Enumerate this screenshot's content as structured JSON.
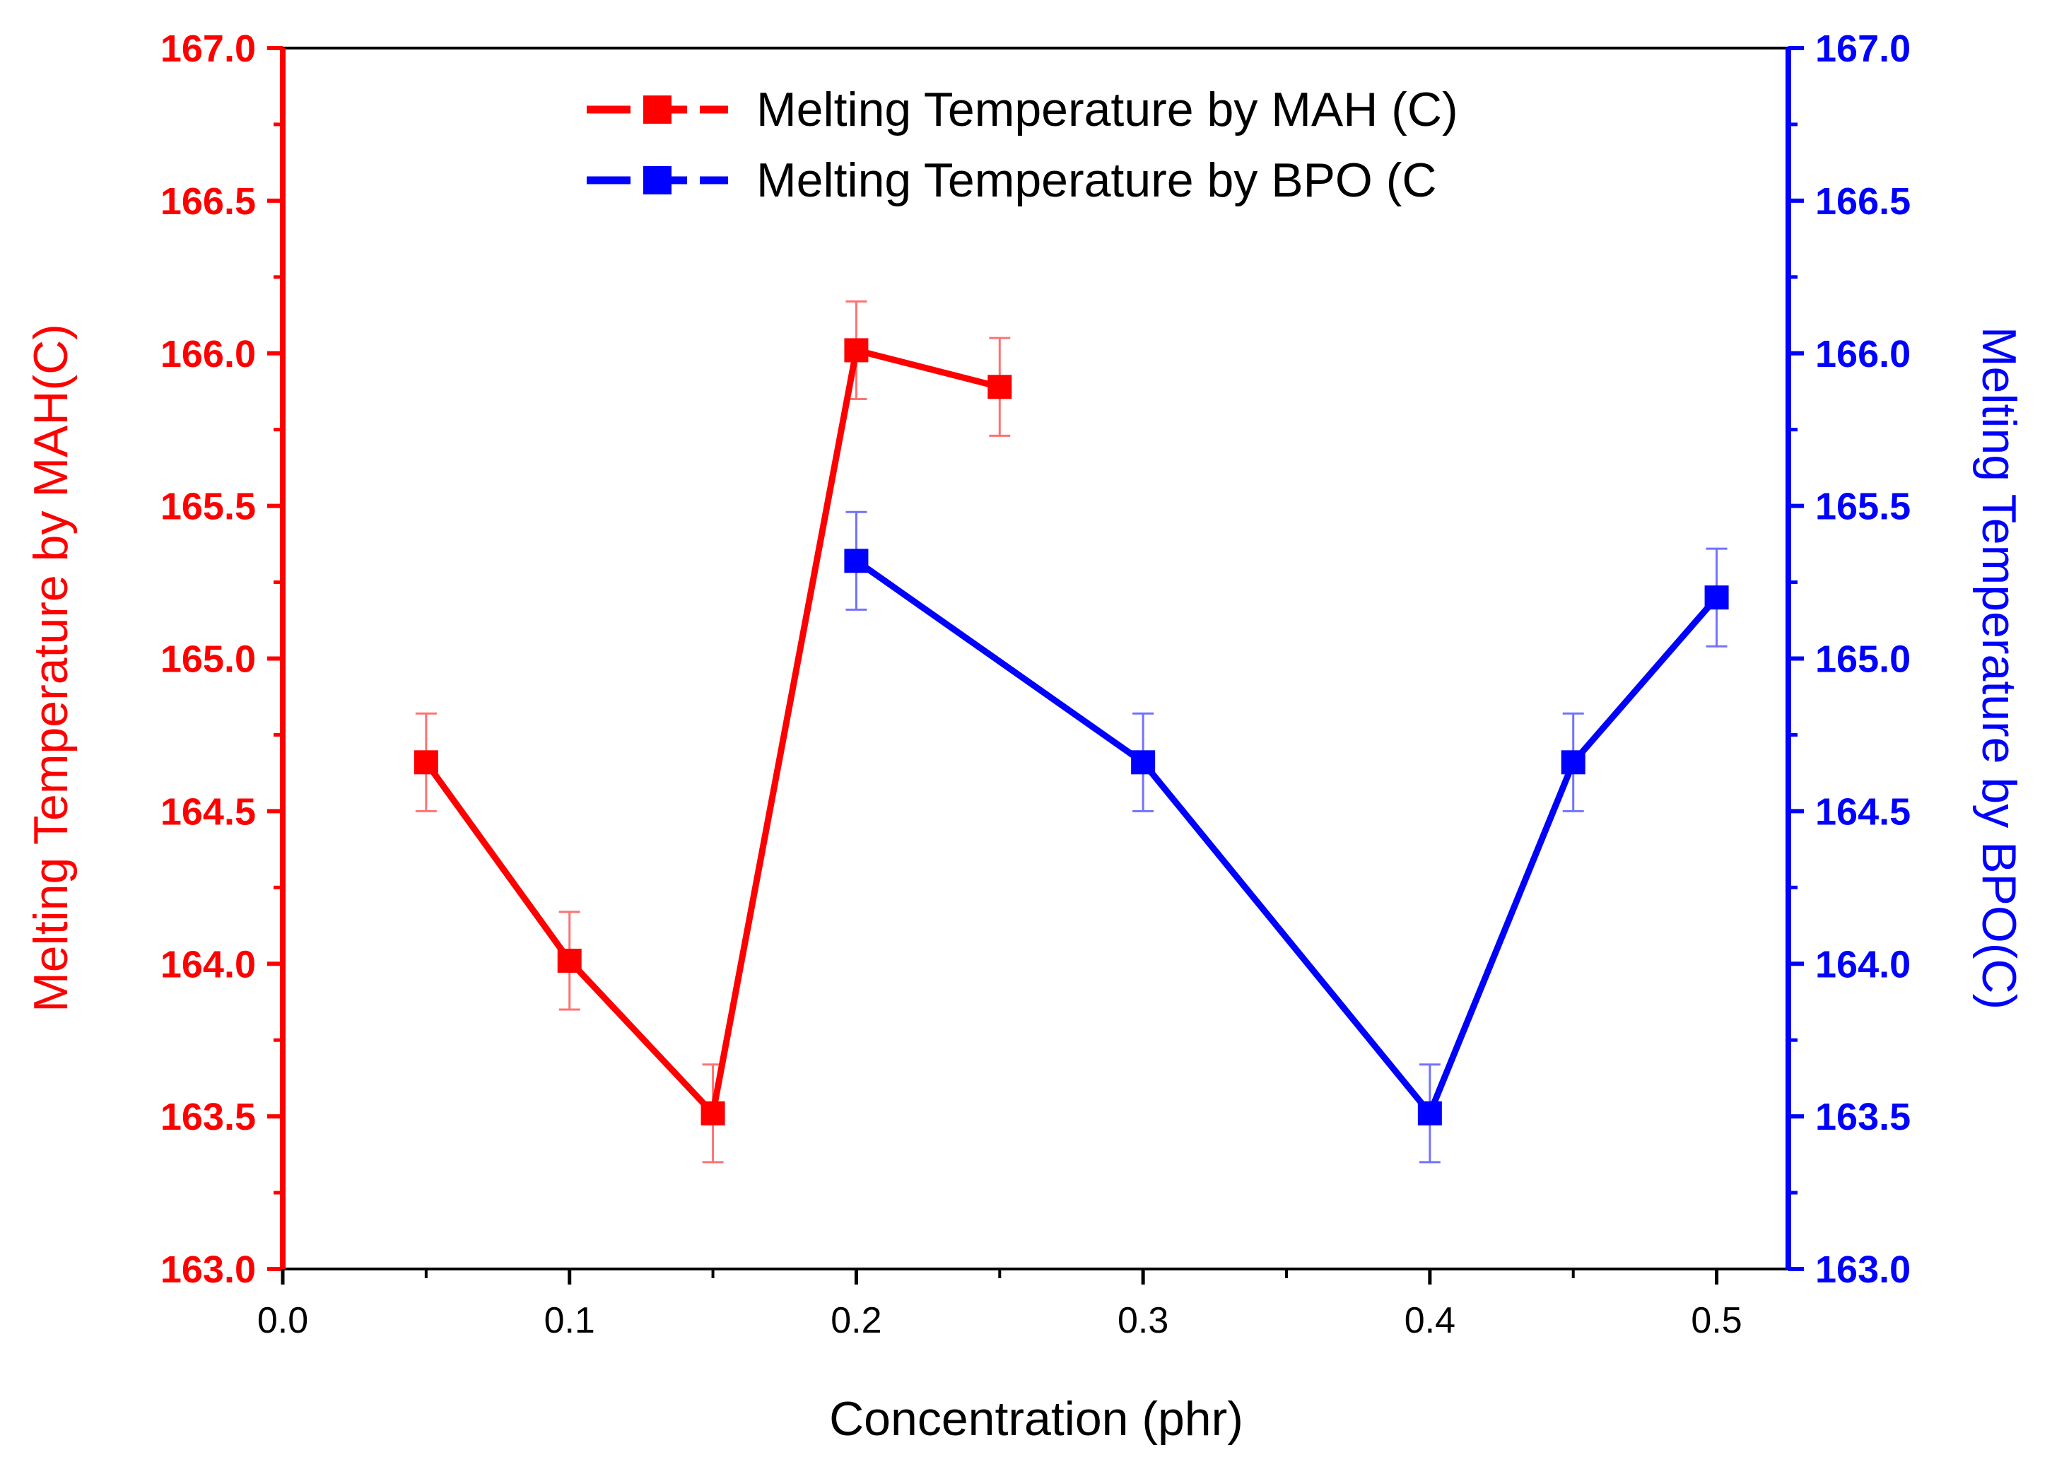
{
  "chart_data": {
    "type": "line",
    "xlabel": "Concentration (phr)",
    "ylabel_left": "Melting Temperature by MAH(C)",
    "ylabel_right": "Melting Temperature by BPO(C)",
    "xlim": [
      0.0,
      0.525
    ],
    "ylim": [
      163.0,
      167.0
    ],
    "x_ticks": [
      "0.0",
      "0.1",
      "0.2",
      "0.3",
      "0.4",
      "0.5"
    ],
    "x_tick_values": [
      0.0,
      0.1,
      0.2,
      0.3,
      0.4,
      0.5
    ],
    "y_ticks_left": [
      "163.0",
      "163.5",
      "164.0",
      "164.5",
      "165.0",
      "165.5",
      "166.0",
      "166.5",
      "167.0"
    ],
    "y_ticks_right": [
      "163.0",
      "163.5",
      "164.0",
      "164.5",
      "165.0",
      "165.5",
      "166.0",
      "166.5",
      "167.0"
    ],
    "y_tick_values": [
      163.0,
      163.5,
      164.0,
      164.5,
      165.0,
      165.5,
      166.0,
      166.5,
      167.0
    ],
    "legend_position": "top-center",
    "grid": false,
    "series": [
      {
        "name": "Melting Temperature by MAH (C)",
        "axis": "left",
        "color": "#ff0000",
        "x": [
          0.05,
          0.1,
          0.15,
          0.2,
          0.25
        ],
        "values": [
          164.66,
          164.01,
          163.51,
          166.01,
          165.89
        ],
        "error": [
          0.16,
          0.16,
          0.16,
          0.16,
          0.16
        ]
      },
      {
        "name": "Melting Temperature by BPO (C",
        "axis": "right",
        "color": "#0000ff",
        "x": [
          0.2,
          0.3,
          0.4,
          0.45,
          0.5
        ],
        "values": [
          165.32,
          164.66,
          163.51,
          164.66,
          165.2
        ],
        "error": [
          0.16,
          0.16,
          0.16,
          0.16,
          0.16
        ]
      }
    ]
  }
}
